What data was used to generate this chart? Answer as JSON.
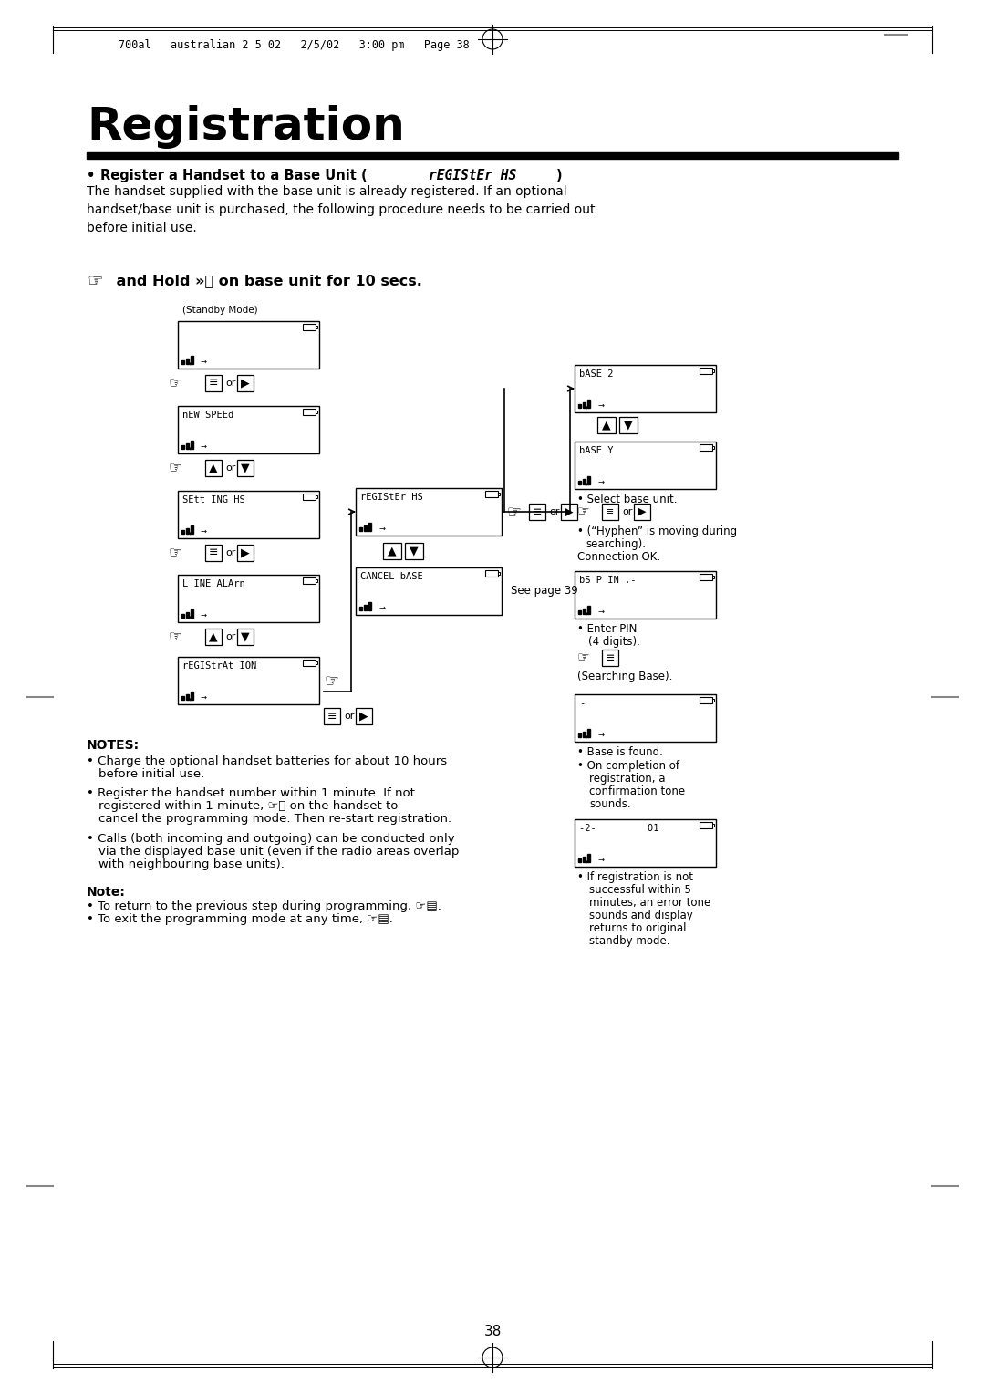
{
  "bg_color": "#ffffff",
  "page_title": "Registration",
  "header_text": "700al   australian 2 5 02   2/5/02   3:00 pm   Page 38",
  "page_number": "38"
}
